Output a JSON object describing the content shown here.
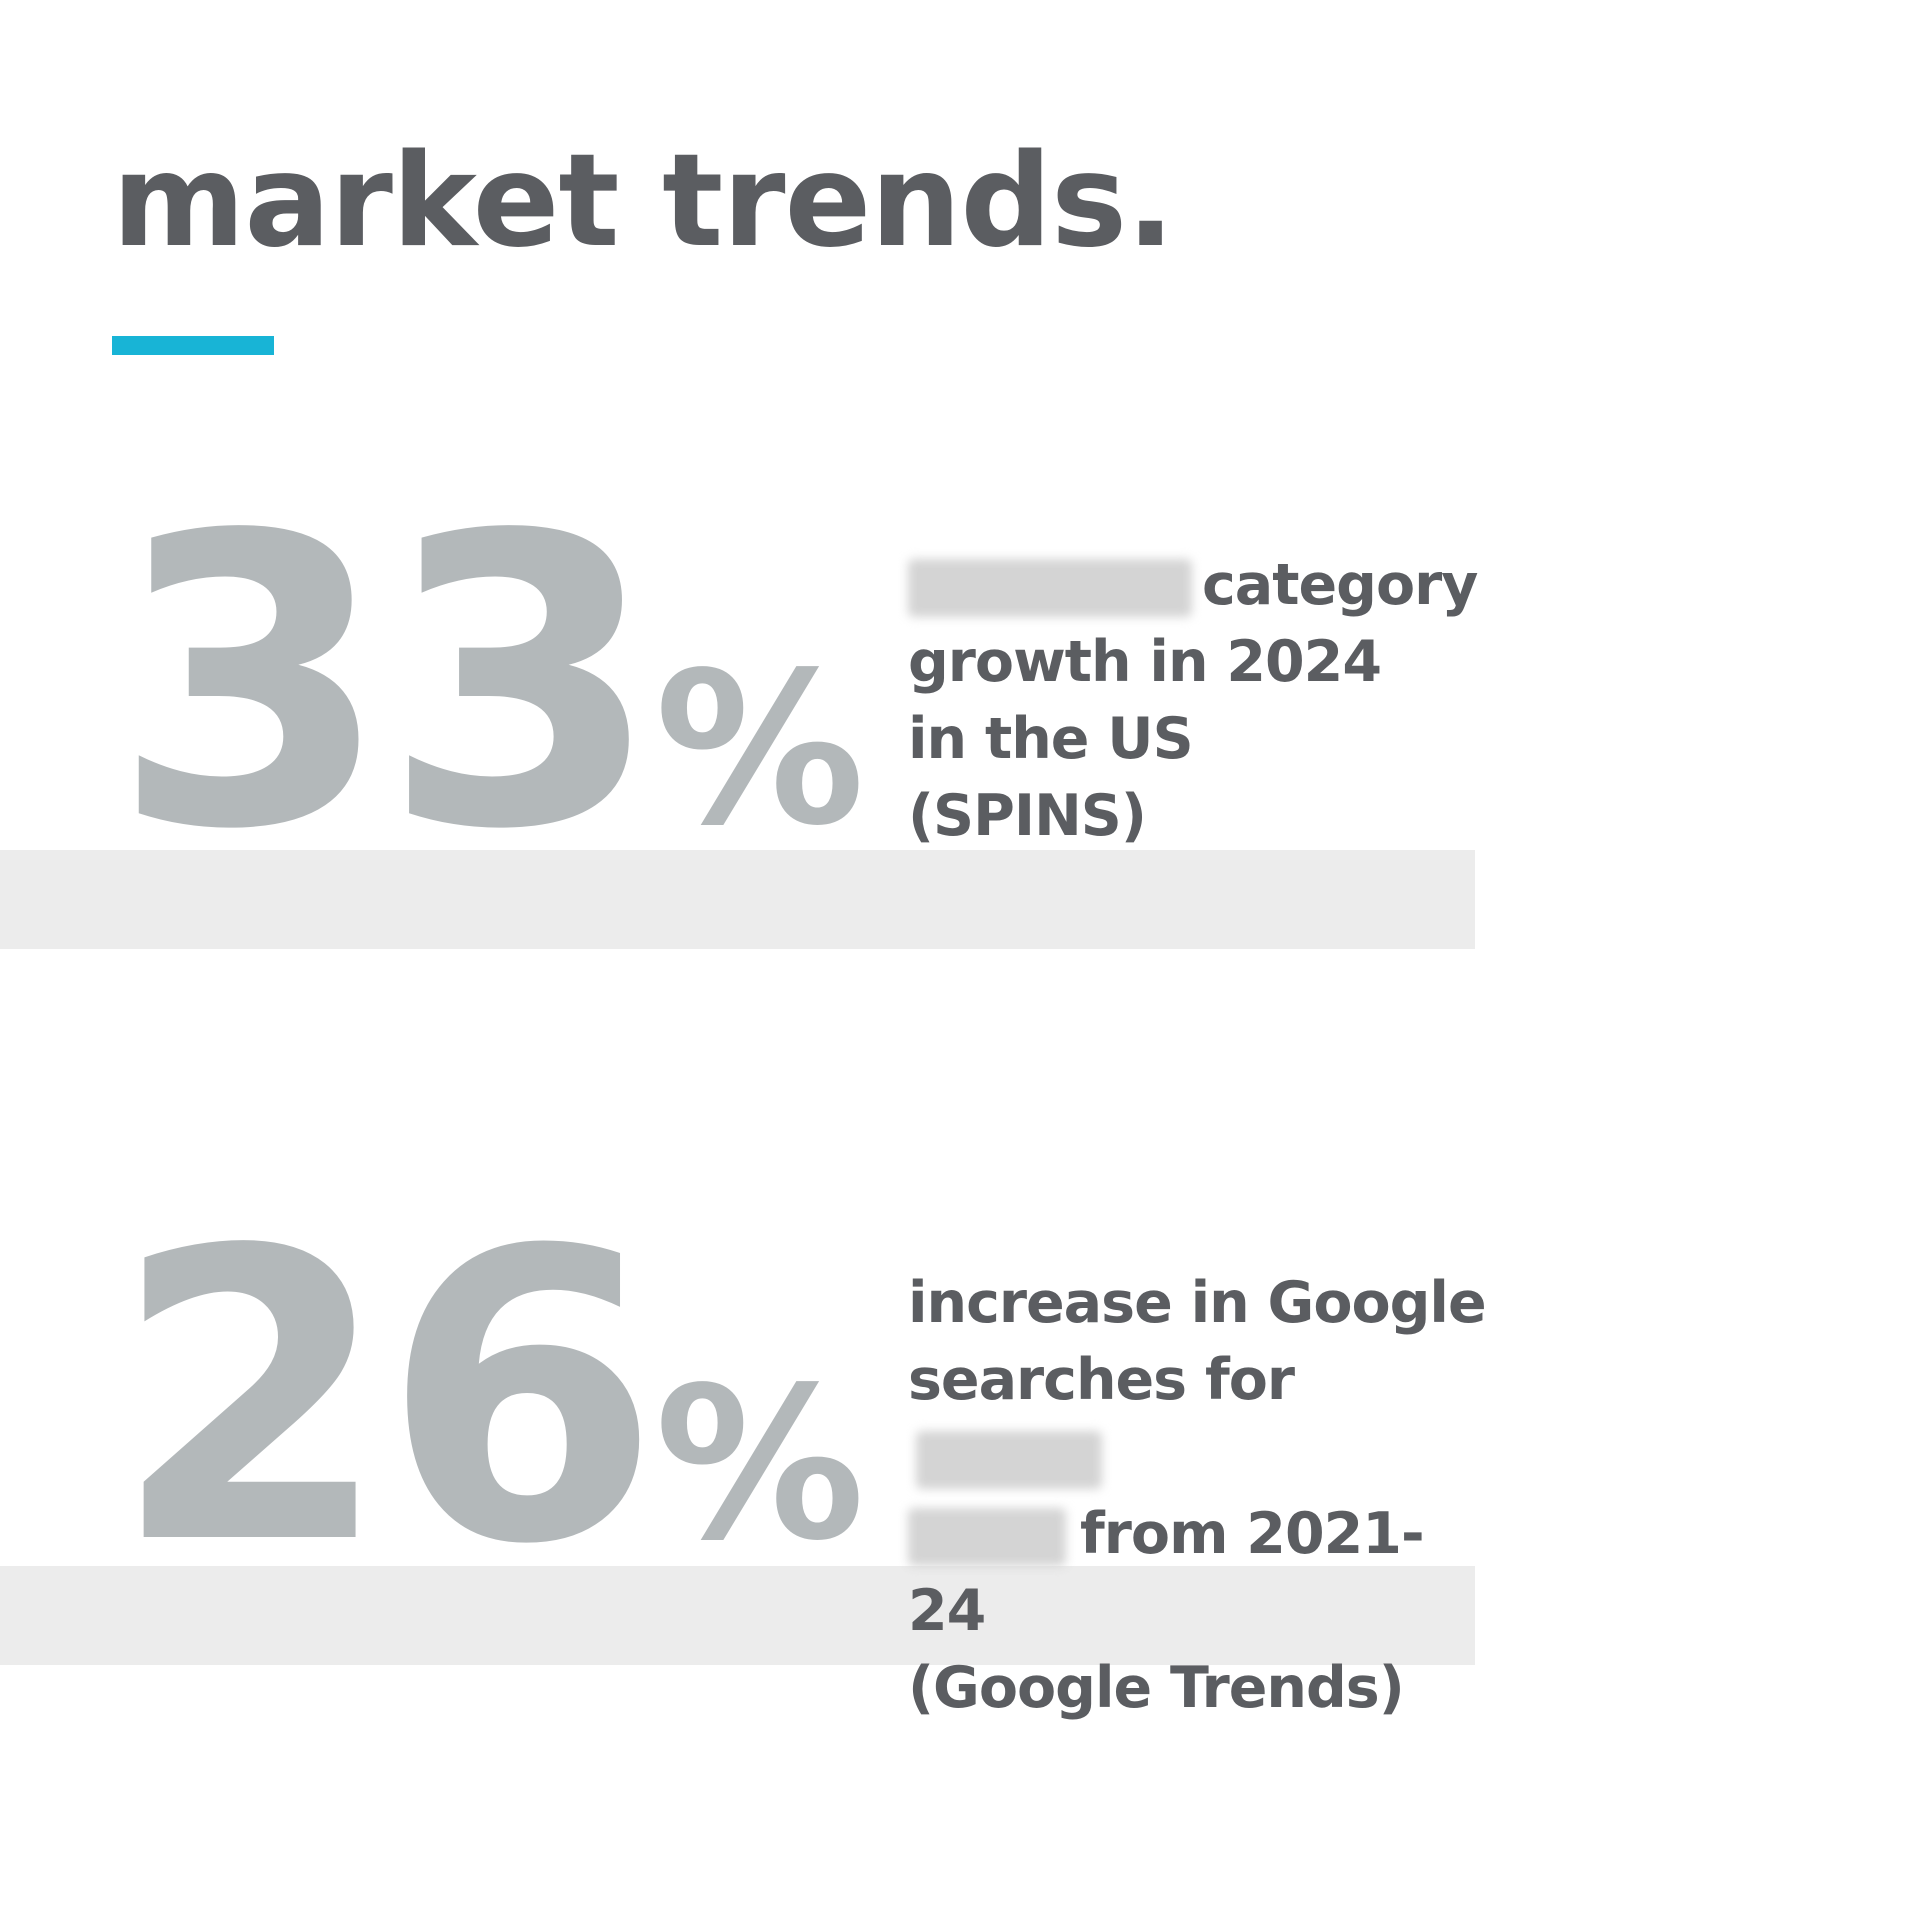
{
  "page": {
    "title": "market trends."
  },
  "stats": [
    {
      "number": "33",
      "symbol": "%",
      "line1_after_redaction": "category",
      "line2": "growth in 2024",
      "line3": "in the US",
      "line4": "(SPINS)"
    },
    {
      "number": "26",
      "symbol": "%",
      "line1": "increase in Google",
      "line2_before_redaction": "searches for",
      "line3_after_redaction": "from 2021-24",
      "line4": "(Google Trends)"
    }
  ],
  "colors": {
    "title_text": "#5b5d61",
    "accent_rule": "#18b4d6",
    "big_number": "#b3b8ba",
    "band": "#ececec",
    "background": "#ffffff"
  }
}
